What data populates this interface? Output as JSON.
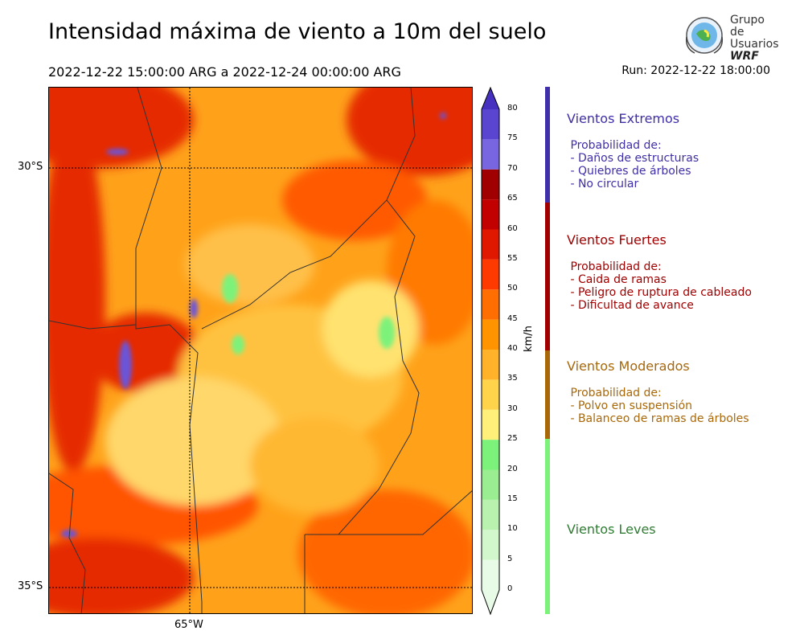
{
  "title": "Intensidad máxima de viento a 10m del suelo",
  "period": "2022-12-22 15:00:00 ARG  a  2022-12-24 00:00:00 ARG",
  "run": "Run: 2022-12-22 18:00:00",
  "logo": {
    "line1": "Grupo de",
    "line2": "Usuarios",
    "line3": "WRF"
  },
  "map": {
    "lat_labels": [
      "30°S",
      "35°S"
    ],
    "lon_labels": [
      "65°W"
    ]
  },
  "colorbar": {
    "unit": "km/h",
    "ticks": [
      "0",
      "5",
      "10",
      "15",
      "20",
      "25",
      "30",
      "35",
      "40",
      "45",
      "50",
      "55",
      "60",
      "65",
      "70",
      "75",
      "80"
    ],
    "colors": [
      "#e8fbe6",
      "#d2f7cc",
      "#b8f2ae",
      "#9aee91",
      "#7df27a",
      "#fff07a",
      "#ffd34a",
      "#ffb22a",
      "#ff9400",
      "#ff6e00",
      "#ff3a00",
      "#e11800",
      "#c20000",
      "#a00000",
      "#7766e0",
      "#5a45d0",
      "#4630c0"
    ]
  },
  "categories": [
    {
      "title": "Vientos Extremos",
      "lines": [
        " Probabilidad de:",
        " - Daños de estructuras",
        " - Quiebres de árboles",
        " - No circular"
      ],
      "color": "#3f2fa8"
    },
    {
      "title": "Vientos Fuertes",
      "lines": [
        " Probabilidad de:",
        " - Caida de ramas",
        " - Peligro de ruptura de cableado",
        " - Dificultad de avance"
      ],
      "color": "#a10000"
    },
    {
      "title": "Vientos Moderados",
      "lines": [
        " Probabilidad de:",
        " - Polvo en suspensión",
        " - Balanceo de ramas de árboles"
      ],
      "color": "#a8680a"
    },
    {
      "title": "Vientos Leves",
      "lines": [],
      "color": "#2e7d32"
    }
  ]
}
